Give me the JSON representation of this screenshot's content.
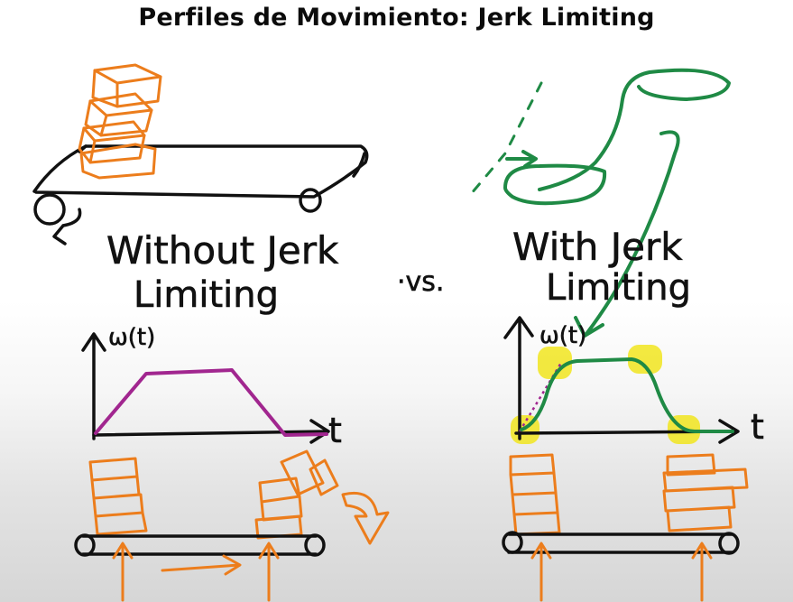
{
  "title": "Perfiles de Movimiento: Jerk Limiting",
  "left_panel": {
    "label_line1": "Without Jerk",
    "label_line2": "Limiting",
    "axis_y": "ω(t)",
    "axis_x": "t"
  },
  "separator": "·vs.",
  "right_panel": {
    "label_line1": "With Jerk",
    "label_line2": "Limiting",
    "axis_y": "ω(t)",
    "axis_x": "t"
  },
  "colors": {
    "ink": "#111111",
    "boxes": "#ec7d1c",
    "trapezoid_profile": "#a1268f",
    "smooth_profile": "#1f8a45",
    "highlight": "#f1e51f"
  }
}
